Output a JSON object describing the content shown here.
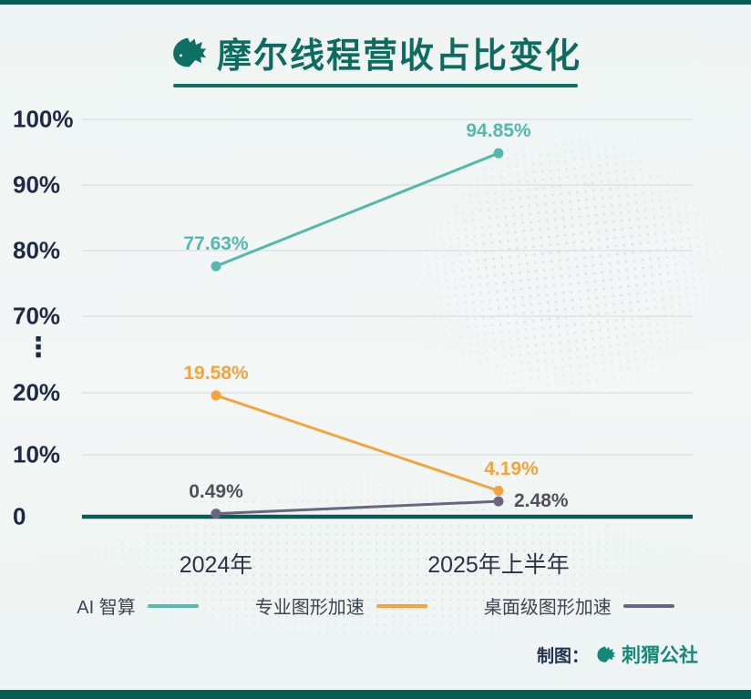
{
  "page": {
    "title": "摩尔线程营收占比变化",
    "credit_label": "制图：",
    "credit_name": "刺猬公社"
  },
  "chart_data": {
    "type": "line",
    "title": "摩尔线程营收占比变化",
    "categories": [
      "2024年",
      "2025年上半年"
    ],
    "series": [
      {
        "name": "AI 智算",
        "color": "#54b8ac",
        "values": [
          77.63,
          94.85
        ],
        "point_labels": [
          "77.63%",
          "94.85%"
        ]
      },
      {
        "name": "专业图形加速",
        "color": "#f3a43c",
        "values": [
          19.58,
          4.19
        ],
        "point_labels": [
          "19.58%",
          "4.19%"
        ]
      },
      {
        "name": "桌面级图形加速",
        "color": "#6b6680",
        "label_color": "#52505c",
        "values": [
          0.49,
          2.48
        ],
        "point_labels": [
          "0.49%",
          "2.48%"
        ]
      }
    ],
    "xlabel": "",
    "ylabel": "",
    "ylim": [
      0,
      100
    ],
    "y_axis": {
      "ticks": [
        {
          "label": "100%",
          "value": 100
        },
        {
          "label": "90%",
          "value": 90
        },
        {
          "label": "80%",
          "value": 80
        },
        {
          "label": "70%",
          "value": 70
        },
        {
          "label": "20%",
          "value": 20
        },
        {
          "label": "10%",
          "value": 10
        },
        {
          "label": "0",
          "value": 0
        }
      ],
      "break_between": [
        70,
        20
      ],
      "break_symbol": "⋮"
    },
    "grid": true,
    "legend_position": "bottom",
    "colors": {
      "axis": "#0a5c54",
      "grid": "#dde3e2",
      "accent": "#0e7065"
    }
  }
}
